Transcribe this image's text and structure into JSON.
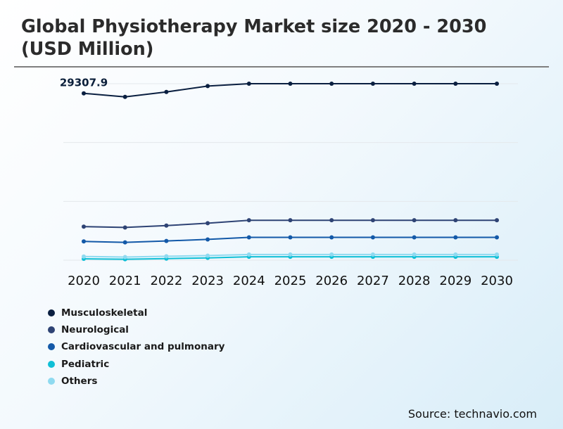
{
  "title": "Global Physiotherapy Market size 2020 - 2030 (USD Million)",
  "source": "Source: technavio.com",
  "chart_data": {
    "type": "line",
    "title": "Global Physiotherapy Market size 2020 - 2030 (USD Million)",
    "x": [
      "2020",
      "2021",
      "2022",
      "2023",
      "2024",
      "2025",
      "2026",
      "2027",
      "2028",
      "2029",
      "2030"
    ],
    "ylim": [
      0,
      31000
    ],
    "grid": true,
    "legend": "bottom-left",
    "data_labels": [
      {
        "series": "Musculoskeletal",
        "x": "2020",
        "text": "29307.9"
      }
    ],
    "series": [
      {
        "name": "Musculoskeletal",
        "color": "#0a1f40",
        "values": [
          29307.9,
          28680,
          29550,
          30580,
          31000,
          31000,
          31000,
          31000,
          31000,
          31000,
          31000
        ]
      },
      {
        "name": "Neurological",
        "color": "#2e4374",
        "values": [
          5900,
          5750,
          6080,
          6500,
          7020,
          7020,
          7020,
          7020,
          7020,
          7020,
          7020
        ]
      },
      {
        "name": "Cardiovascular and pulmonary",
        "color": "#1359a8",
        "values": [
          3300,
          3140,
          3380,
          3650,
          4020,
          4020,
          4020,
          4020,
          4020,
          4020,
          4020
        ]
      },
      {
        "name": "Pediatric",
        "color": "#0fbfd6",
        "values": [
          250,
          170,
          280,
          410,
          600,
          600,
          600,
          600,
          600,
          600,
          600
        ]
      },
      {
        "name": "Others",
        "color": "#8fdaf0",
        "values": [
          650,
          560,
          690,
          810,
          1000,
          1000,
          1000,
          1000,
          1000,
          1000,
          1000
        ]
      }
    ]
  }
}
